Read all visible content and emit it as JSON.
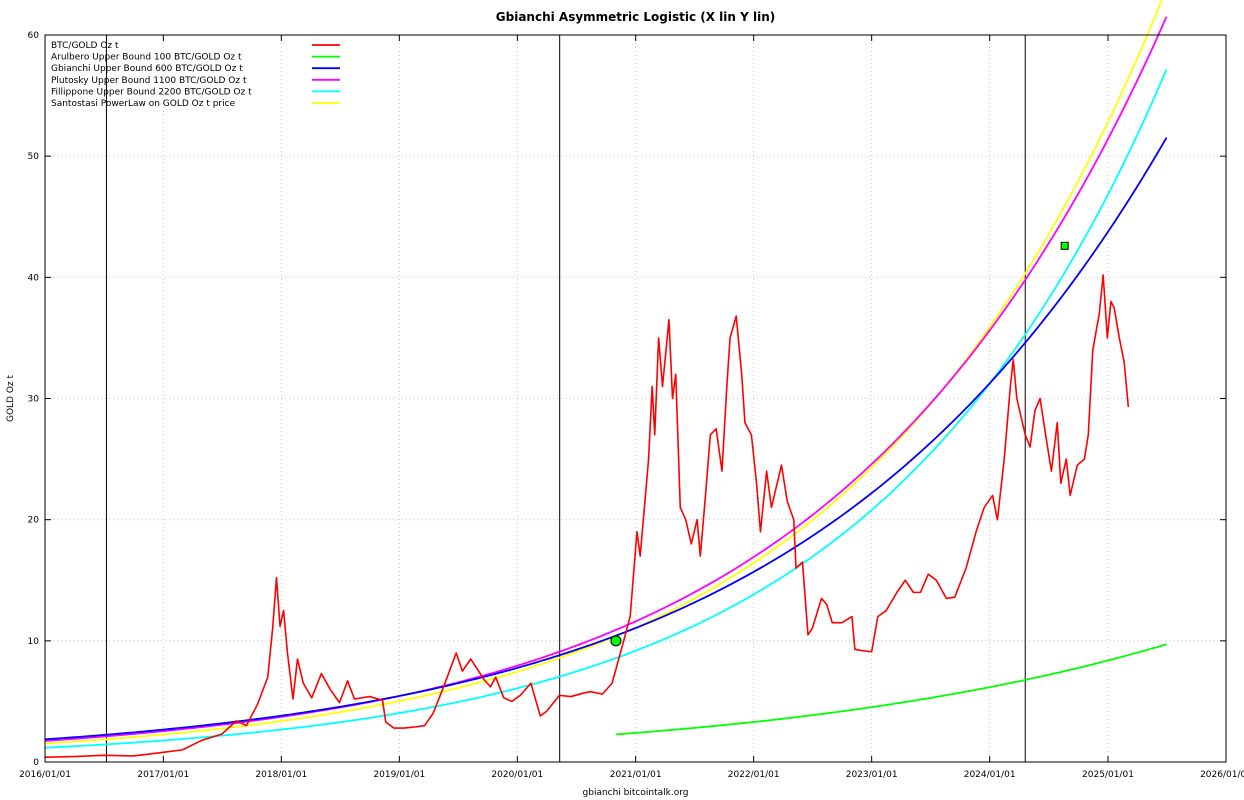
{
  "chart_data": {
    "type": "line",
    "title": "Gbianchi Asymmetric Logistic (X lin Y lin)",
    "xlabel": "gbianchi bitcointalk.org",
    "ylabel": "GOLD Oz t",
    "xlim": [
      "2016/01/01",
      "2026/01/01"
    ],
    "ylim": [
      0,
      60
    ],
    "x_ticks": [
      "2016/01/01",
      "2017/01/01",
      "2018/01/01",
      "2019/01/01",
      "2020/01/01",
      "2021/01/01",
      "2022/01/01",
      "2023/01/01",
      "2024/01/01",
      "2025/01/01",
      "2026/01/01"
    ],
    "y_ticks": [
      0,
      10,
      20,
      30,
      40,
      50,
      60
    ],
    "grid": true,
    "legend_position": "top-left",
    "vertical_lines": [
      "2016/07/09",
      "2020/05/11",
      "2024/04/20"
    ],
    "series": [
      {
        "name": "BTC/GOLD Oz t",
        "color": "#ff0000",
        "points": [
          [
            "2016/01/01",
            0.4
          ],
          [
            "2016/04/01",
            0.45
          ],
          [
            "2016/07/01",
            0.55
          ],
          [
            "2016/10/01",
            0.5
          ],
          [
            "2017/01/01",
            0.8
          ],
          [
            "2017/03/01",
            1.0
          ],
          [
            "2017/05/01",
            1.8
          ],
          [
            "2017/07/01",
            2.3
          ],
          [
            "2017/08/15",
            3.4
          ],
          [
            "2017/09/15",
            3.0
          ],
          [
            "2017/10/20",
            4.8
          ],
          [
            "2017/11/20",
            7.0
          ],
          [
            "2017/12/05",
            11.0
          ],
          [
            "2017/12/17",
            15.2
          ],
          [
            "2017/12/28",
            11.2
          ],
          [
            "2018/01/08",
            12.5
          ],
          [
            "2018/01/20",
            9.0
          ],
          [
            "2018/02/06",
            5.2
          ],
          [
            "2018/02/20",
            8.5
          ],
          [
            "2018/03/10",
            6.5
          ],
          [
            "2018/04/05",
            5.3
          ],
          [
            "2018/05/05",
            7.3
          ],
          [
            "2018/06/01",
            6.0
          ],
          [
            "2018/06/30",
            4.9
          ],
          [
            "2018/07/25",
            6.7
          ],
          [
            "2018/08/15",
            5.2
          ],
          [
            "2018/10/01",
            5.4
          ],
          [
            "2018/11/10",
            5.1
          ],
          [
            "2018/11/20",
            3.3
          ],
          [
            "2018/12/15",
            2.8
          ],
          [
            "2019/01/15",
            2.8
          ],
          [
            "2019/02/20",
            2.9
          ],
          [
            "2019/03/20",
            3.0
          ],
          [
            "2019/04/15",
            4.0
          ],
          [
            "2019/05/15",
            6.0
          ],
          [
            "2019/06/26",
            9.0
          ],
          [
            "2019/07/15",
            7.5
          ],
          [
            "2019/08/10",
            8.5
          ],
          [
            "2019/09/20",
            6.8
          ],
          [
            "2019/10/10",
            6.2
          ],
          [
            "2019/10/26",
            7.0
          ],
          [
            "2019/11/20",
            5.3
          ],
          [
            "2019/12/15",
            5.0
          ],
          [
            "2020/01/10",
            5.5
          ],
          [
            "2020/02/12",
            6.5
          ],
          [
            "2020/03/12",
            3.8
          ],
          [
            "2020/04/01",
            4.2
          ],
          [
            "2020/05/10",
            5.5
          ],
          [
            "2020/06/15",
            5.4
          ],
          [
            "2020/07/25",
            5.7
          ],
          [
            "2020/08/15",
            5.8
          ],
          [
            "2020/09/20",
            5.6
          ],
          [
            "2020/10/20",
            6.5
          ],
          [
            "2020/11/20",
            9.5
          ],
          [
            "2020/12/15",
            12.0
          ],
          [
            "2021/01/05",
            19.0
          ],
          [
            "2021/01/15",
            17.0
          ],
          [
            "2021/02/10",
            25.0
          ],
          [
            "2021/02/21",
            31.0
          ],
          [
            "2021/03/01",
            27.0
          ],
          [
            "2021/03/13",
            35.0
          ],
          [
            "2021/03/25",
            31.0
          ],
          [
            "2021/04/14",
            36.5
          ],
          [
            "2021/04/25",
            30.0
          ],
          [
            "2021/05/05",
            32.0
          ],
          [
            "2021/05/19",
            21.0
          ],
          [
            "2021/06/05",
            20.0
          ],
          [
            "2021/06/22",
            18.0
          ],
          [
            "2021/07/10",
            20.0
          ],
          [
            "2021/07/20",
            17.0
          ],
          [
            "2021/08/05",
            22.0
          ],
          [
            "2021/08/20",
            27.0
          ],
          [
            "2021/09/07",
            27.5
          ],
          [
            "2021/09/25",
            24.0
          ],
          [
            "2021/10/10",
            31.0
          ],
          [
            "2021/10/20",
            35.0
          ],
          [
            "2021/11/08",
            36.8
          ],
          [
            "2021/11/25",
            32.0
          ],
          [
            "2021/12/05",
            28.0
          ],
          [
            "2021/12/25",
            27.0
          ],
          [
            "2022/01/10",
            23.0
          ],
          [
            "2022/01/22",
            19.0
          ],
          [
            "2022/02/10",
            24.0
          ],
          [
            "2022/02/25",
            21.0
          ],
          [
            "2022/03/28",
            24.5
          ],
          [
            "2022/04/15",
            21.5
          ],
          [
            "2022/05/05",
            20.0
          ],
          [
            "2022/05/12",
            16.0
          ],
          [
            "2022/06/01",
            16.5
          ],
          [
            "2022/06/18",
            10.5
          ],
          [
            "2022/07/01",
            11.0
          ],
          [
            "2022/07/30",
            13.5
          ],
          [
            "2022/08/15",
            13.0
          ],
          [
            "2022/09/01",
            11.5
          ],
          [
            "2022/10/01",
            11.5
          ],
          [
            "2022/11/01",
            12.0
          ],
          [
            "2022/11/10",
            9.3
          ],
          [
            "2022/12/01",
            9.2
          ],
          [
            "2023/01/01",
            9.1
          ],
          [
            "2023/01/20",
            12.0
          ],
          [
            "2023/02/15",
            12.5
          ],
          [
            "2023/03/20",
            14.0
          ],
          [
            "2023/04/15",
            15.0
          ],
          [
            "2023/05/10",
            14.0
          ],
          [
            "2023/06/01",
            14.0
          ],
          [
            "2023/06/25",
            15.5
          ],
          [
            "2023/07/20",
            15.0
          ],
          [
            "2023/08/20",
            13.5
          ],
          [
            "2023/09/15",
            13.6
          ],
          [
            "2023/10/20",
            16.0
          ],
          [
            "2023/11/20",
            19.0
          ],
          [
            "2023/12/15",
            21.0
          ],
          [
            "2024/01/10",
            22.0
          ],
          [
            "2024/01/25",
            20.0
          ],
          [
            "2024/02/15",
            25.0
          ],
          [
            "2024/03/05",
            31.0
          ],
          [
            "2024/03/14",
            33.2
          ],
          [
            "2024/03/25",
            30.0
          ],
          [
            "2024/04/20",
            27.0
          ],
          [
            "2024/05/05",
            26.0
          ],
          [
            "2024/05/20",
            29.0
          ],
          [
            "2024/06/05",
            30.0
          ],
          [
            "2024/06/25",
            26.5
          ],
          [
            "2024/07/10",
            24.0
          ],
          [
            "2024/07/28",
            28.0
          ],
          [
            "2024/08/08",
            23.0
          ],
          [
            "2024/08/25",
            25.0
          ],
          [
            "2024/09/06",
            22.0
          ],
          [
            "2024/09/28",
            24.5
          ],
          [
            "2024/10/20",
            25.0
          ],
          [
            "2024/11/01",
            27.0
          ],
          [
            "2024/11/15",
            34.0
          ],
          [
            "2024/12/05",
            37.0
          ],
          [
            "2024/12/17",
            40.2
          ],
          [
            "2024/12/30",
            35.0
          ],
          [
            "2025/01/10",
            38.0
          ],
          [
            "2025/01/20",
            37.5
          ],
          [
            "2025/02/05",
            35.0
          ],
          [
            "2025/02/20",
            33.0
          ],
          [
            "2025/03/05",
            29.3
          ]
        ]
      },
      {
        "name": "Arulbero Upper Bound 100  BTC/GOLD Oz t",
        "color": "#00ff00",
        "model": "logistic",
        "L": 100,
        "k": 0.3282,
        "t0": 16.29,
        "start": "2020/11/01",
        "end": "2025/07/01"
      },
      {
        "name": "Gbianchi Upper Bound 600  BTC/GOLD Oz t",
        "color": "#0000ff",
        "model": "logistic",
        "L": 600,
        "k": 0.3582,
        "t0": 16.1,
        "start": "2016/01/01",
        "end": "2025/07/01"
      },
      {
        "name": "Plutosky Upper Bound 1100  BTC/GOLD Oz t",
        "color": "#ff00ff",
        "model": "logistic",
        "L": 1100,
        "k": 0.3813,
        "t0": 16.91,
        "start": "2016/01/01",
        "end": "2025/07/01"
      },
      {
        "name": "Fillippone Upper Bound 2200  BTC/GOLD Oz t",
        "color": "#00ffff",
        "model": "logistic",
        "L": 2200,
        "k": 0.4117,
        "t0": 18.3,
        "start": "2016/01/01",
        "end": "2025/07/01"
      },
      {
        "name": "Santostasi PowerLaw on GOLD Oz t price",
        "color": "#ffff00",
        "model": "logistic",
        "L": 1500,
        "k": 0.3975,
        "t0": 17.33,
        "start": "2016/01/01",
        "end": "2025/07/01"
      }
    ],
    "markers": [
      {
        "type": "circle",
        "color": "#00ff00",
        "x": "2020/11/01",
        "y": 10.0
      },
      {
        "type": "square",
        "color": "#00ff00",
        "x": "2024/08/20",
        "y": 42.6
      }
    ]
  }
}
